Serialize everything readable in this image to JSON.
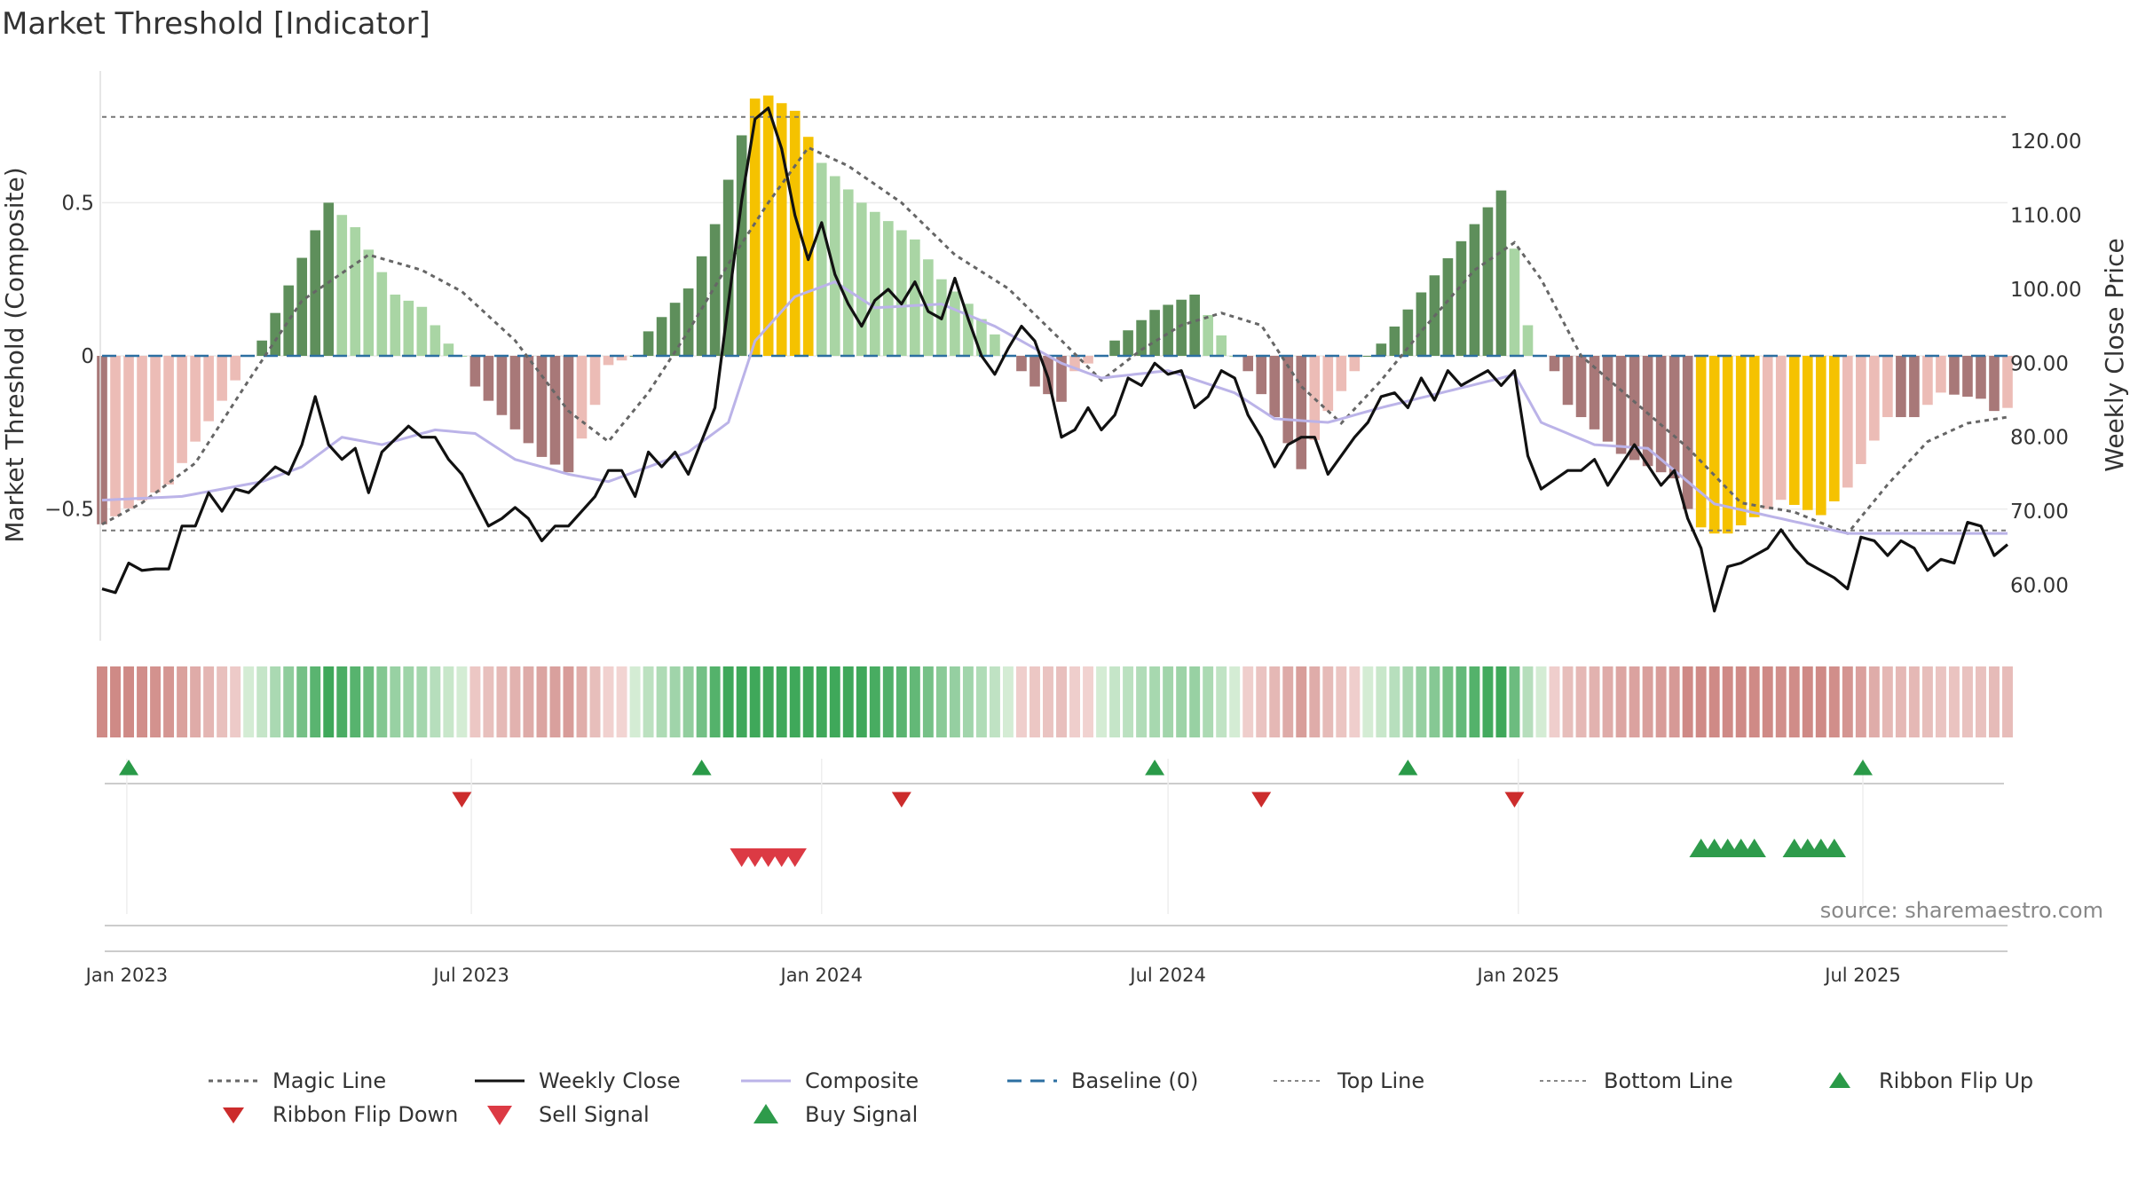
{
  "chart_data": {
    "type": "bar",
    "title": "Market Threshold [Indicator]",
    "ylabel": "Market Threshold (Composite)",
    "y2label": "Weekly Close Price",
    "ylim": [
      -0.93,
      0.93
    ],
    "y2lim": [
      52.5,
      129.5
    ],
    "yticks": [
      {
        "v": 0.5,
        "label": "0.5"
      },
      {
        "v": 0,
        "label": "0"
      },
      {
        "v": -0.5,
        "label": "−0.5"
      }
    ],
    "y2ticks": [
      {
        "v": 120,
        "label": "120.00"
      },
      {
        "v": 110,
        "label": "110.00"
      },
      {
        "v": 100,
        "label": "100.00"
      },
      {
        "v": 90,
        "label": "90.00"
      },
      {
        "v": 80,
        "label": "80.00"
      },
      {
        "v": 70,
        "label": "70.00"
      },
      {
        "v": 60,
        "label": "60.00"
      }
    ],
    "x_start": "2022-12-19",
    "x_end": "2025-09-15",
    "xticks": [
      {
        "date": "2023-01-01",
        "label": "Jan 2023"
      },
      {
        "date": "2023-07-01",
        "label": "Jul 2023"
      },
      {
        "date": "2024-01-01",
        "label": "Jan 2024"
      },
      {
        "date": "2024-07-01",
        "label": "Jul 2024"
      },
      {
        "date": "2025-01-01",
        "label": "Jan 2025"
      },
      {
        "date": "2025-07-01",
        "label": "Jul 2025"
      }
    ],
    "composite_anchors": [
      [
        "2022-12-19",
        -0.55
      ],
      [
        "2023-01-23",
        -0.42
      ],
      [
        "2023-02-06",
        -0.28
      ],
      [
        "2023-02-27",
        -0.08
      ],
      [
        "2023-03-06",
        0.0
      ],
      [
        "2023-03-13",
        0.05
      ],
      [
        "2023-04-03",
        0.32
      ],
      [
        "2023-04-17",
        0.5
      ],
      [
        "2023-05-01",
        0.42
      ],
      [
        "2023-05-22",
        0.2
      ],
      [
        "2023-06-05",
        0.16
      ],
      [
        "2023-06-19",
        0.04
      ],
      [
        "2023-06-26",
        0.0
      ],
      [
        "2023-07-03",
        -0.1
      ],
      [
        "2023-07-24",
        -0.24
      ],
      [
        "2023-08-07",
        -0.33
      ],
      [
        "2023-08-21",
        -0.38
      ],
      [
        "2023-09-04",
        -0.16
      ],
      [
        "2023-09-11",
        -0.03
      ],
      [
        "2023-09-25",
        0.0
      ],
      [
        "2023-10-02",
        0.08
      ],
      [
        "2023-10-23",
        0.22
      ],
      [
        "2023-11-06",
        0.43
      ],
      [
        "2023-11-20",
        0.72
      ],
      [
        "2023-11-27",
        0.84
      ],
      [
        "2023-12-04",
        0.85
      ],
      [
        "2023-12-18",
        0.8
      ],
      [
        "2024-01-01",
        0.63
      ],
      [
        "2024-01-22",
        0.5
      ],
      [
        "2024-02-19",
        0.38
      ],
      [
        "2024-03-04",
        0.25
      ],
      [
        "2024-03-18",
        0.17
      ],
      [
        "2024-04-01",
        0.07
      ],
      [
        "2024-04-08",
        0.0
      ],
      [
        "2024-04-22",
        -0.1
      ],
      [
        "2024-05-06",
        -0.15
      ],
      [
        "2024-05-13",
        -0.05
      ],
      [
        "2024-05-27",
        0.0
      ],
      [
        "2024-06-03",
        0.05
      ],
      [
        "2024-06-24",
        0.15
      ],
      [
        "2024-07-15",
        0.2
      ],
      [
        "2024-08-05",
        0.0
      ],
      [
        "2024-08-12",
        -0.05
      ],
      [
        "2024-08-26",
        -0.2
      ],
      [
        "2024-09-09",
        -0.37
      ],
      [
        "2024-09-23",
        -0.18
      ],
      [
        "2024-10-07",
        -0.05
      ],
      [
        "2024-10-14",
        0.0
      ],
      [
        "2024-10-21",
        0.04
      ],
      [
        "2024-12-09",
        0.43
      ],
      [
        "2024-12-23",
        0.54
      ],
      [
        "2024-12-30",
        0.35
      ],
      [
        "2025-01-06",
        0.1
      ],
      [
        "2025-01-13",
        0.0
      ],
      [
        "2025-01-20",
        -0.05
      ],
      [
        "2025-01-27",
        -0.16
      ],
      [
        "2025-02-24",
        -0.32
      ],
      [
        "2025-03-24",
        -0.4
      ],
      [
        "2025-03-31",
        -0.5
      ],
      [
        "2025-04-07",
        -0.56
      ],
      [
        "2025-04-14",
        -0.58
      ],
      [
        "2025-04-21",
        -0.58
      ],
      [
        "2025-05-12",
        -0.5
      ],
      [
        "2025-05-19",
        -0.47
      ],
      [
        "2025-06-09",
        -0.52
      ],
      [
        "2025-06-23",
        -0.43
      ],
      [
        "2025-07-14",
        -0.2
      ],
      [
        "2025-07-28",
        -0.2
      ],
      [
        "2025-08-11",
        -0.12
      ],
      [
        "2025-09-01",
        -0.14
      ],
      [
        "2025-09-08",
        -0.18
      ],
      [
        "2025-09-15",
        -0.17
      ]
    ],
    "weekly_close_anchors": [
      [
        "2022-12-19",
        59.5
      ],
      [
        "2022-12-26",
        59
      ],
      [
        "2023-01-02",
        63
      ],
      [
        "2023-01-09",
        62
      ],
      [
        "2023-01-16",
        62.2
      ],
      [
        "2023-01-23",
        62.2
      ],
      [
        "2023-01-30",
        68
      ],
      [
        "2023-02-06",
        68
      ],
      [
        "2023-02-13",
        72.5
      ],
      [
        "2023-02-20",
        70
      ],
      [
        "2023-02-27",
        73
      ],
      [
        "2023-03-06",
        72.5
      ],
      [
        "2023-03-20",
        76
      ],
      [
        "2023-03-27",
        75
      ],
      [
        "2023-04-03",
        79
      ],
      [
        "2023-04-10",
        85.5
      ],
      [
        "2023-04-17",
        79
      ],
      [
        "2023-04-24",
        77
      ],
      [
        "2023-05-01",
        78.5
      ],
      [
        "2023-05-08",
        72.5
      ],
      [
        "2023-05-15",
        78
      ],
      [
        "2023-05-29",
        81.5
      ],
      [
        "2023-06-05",
        80
      ],
      [
        "2023-06-12",
        80
      ],
      [
        "2023-06-19",
        77
      ],
      [
        "2023-06-26",
        75
      ],
      [
        "2023-07-03",
        71.5
      ],
      [
        "2023-07-10",
        68
      ],
      [
        "2023-07-17",
        69
      ],
      [
        "2023-07-24",
        70.5
      ],
      [
        "2023-07-31",
        69
      ],
      [
        "2023-08-07",
        66
      ],
      [
        "2023-08-14",
        68
      ],
      [
        "2023-08-21",
        68
      ],
      [
        "2023-09-04",
        72
      ],
      [
        "2023-09-11",
        75.5
      ],
      [
        "2023-09-18",
        75.5
      ],
      [
        "2023-09-25",
        72
      ],
      [
        "2023-10-02",
        78
      ],
      [
        "2023-10-09",
        76
      ],
      [
        "2023-10-16",
        78
      ],
      [
        "2023-10-23",
        75
      ],
      [
        "2023-10-30",
        79.5
      ],
      [
        "2023-11-06",
        84
      ],
      [
        "2023-11-20",
        112
      ],
      [
        "2023-11-27",
        123
      ],
      [
        "2023-12-04",
        124.5
      ],
      [
        "2023-12-11",
        119
      ],
      [
        "2023-12-18",
        110
      ],
      [
        "2023-12-25",
        104
      ],
      [
        "2024-01-01",
        109
      ],
      [
        "2024-01-08",
        102
      ],
      [
        "2024-01-15",
        98
      ],
      [
        "2024-01-22",
        95
      ],
      [
        "2024-01-29",
        98.5
      ],
      [
        "2024-02-05",
        100
      ],
      [
        "2024-02-12",
        98
      ],
      [
        "2024-02-19",
        101
      ],
      [
        "2024-02-26",
        97
      ],
      [
        "2024-03-04",
        96
      ],
      [
        "2024-03-11",
        101.5
      ],
      [
        "2024-03-18",
        96
      ],
      [
        "2024-03-25",
        91
      ],
      [
        "2024-04-01",
        88.5
      ],
      [
        "2024-04-08",
        92
      ],
      [
        "2024-04-15",
        95
      ],
      [
        "2024-04-22",
        93
      ],
      [
        "2024-04-29",
        88
      ],
      [
        "2024-05-06",
        80
      ],
      [
        "2024-05-13",
        81
      ],
      [
        "2024-05-20",
        84
      ],
      [
        "2024-05-27",
        81
      ],
      [
        "2024-06-03",
        83
      ],
      [
        "2024-06-10",
        88
      ],
      [
        "2024-06-17",
        87
      ],
      [
        "2024-06-24",
        90
      ],
      [
        "2024-07-01",
        88.5
      ],
      [
        "2024-07-08",
        89
      ],
      [
        "2024-07-15",
        84
      ],
      [
        "2024-07-22",
        85.5
      ],
      [
        "2024-07-29",
        89
      ],
      [
        "2024-08-05",
        88
      ],
      [
        "2024-08-12",
        83
      ],
      [
        "2024-08-19",
        80
      ],
      [
        "2024-08-26",
        76
      ],
      [
        "2024-09-02",
        79
      ],
      [
        "2024-09-09",
        80
      ],
      [
        "2024-09-16",
        80
      ],
      [
        "2024-09-23",
        75
      ],
      [
        "2024-10-07",
        80
      ],
      [
        "2024-10-14",
        82
      ],
      [
        "2024-10-21",
        85.5
      ],
      [
        "2024-10-28",
        86
      ],
      [
        "2024-11-04",
        84
      ],
      [
        "2024-11-11",
        88
      ],
      [
        "2024-11-18",
        85
      ],
      [
        "2024-11-25",
        89
      ],
      [
        "2024-12-02",
        87
      ],
      [
        "2024-12-09",
        88
      ],
      [
        "2024-12-16",
        89
      ],
      [
        "2024-12-23",
        87
      ],
      [
        "2024-12-30",
        89
      ],
      [
        "2025-01-06",
        77.5
      ],
      [
        "2025-01-13",
        73
      ],
      [
        "2025-01-27",
        75.5
      ],
      [
        "2025-02-03",
        75.5
      ],
      [
        "2025-02-10",
        77
      ],
      [
        "2025-02-17",
        73.5
      ],
      [
        "2025-03-03",
        79
      ],
      [
        "2025-03-17",
        73.5
      ],
      [
        "2025-03-24",
        75.5
      ],
      [
        "2025-03-31",
        69
      ],
      [
        "2025-04-07",
        65
      ],
      [
        "2025-04-14",
        56.5
      ],
      [
        "2025-04-21",
        62.5
      ],
      [
        "2025-04-28",
        63
      ],
      [
        "2025-05-05",
        64
      ],
      [
        "2025-05-12",
        65
      ],
      [
        "2025-05-19",
        67.5
      ],
      [
        "2025-05-26",
        65
      ],
      [
        "2025-06-02",
        63
      ],
      [
        "2025-06-16",
        61
      ],
      [
        "2025-06-23",
        59.5
      ],
      [
        "2025-06-30",
        66.5
      ],
      [
        "2025-07-07",
        66
      ],
      [
        "2025-07-14",
        64
      ],
      [
        "2025-07-21",
        66
      ],
      [
        "2025-07-28",
        65
      ],
      [
        "2025-08-04",
        62
      ],
      [
        "2025-08-11",
        63.5
      ],
      [
        "2025-08-18",
        63
      ],
      [
        "2025-08-25",
        68.5
      ],
      [
        "2025-09-01",
        68
      ],
      [
        "2025-09-08",
        64
      ],
      [
        "2025-09-15",
        65.5
      ]
    ],
    "composite_line_anchors": [
      [
        "2022-12-19",
        71.5
      ],
      [
        "2023-01-30",
        72
      ],
      [
        "2023-03-13",
        74
      ],
      [
        "2023-04-03",
        76
      ],
      [
        "2023-04-24",
        80
      ],
      [
        "2023-05-15",
        79
      ],
      [
        "2023-06-12",
        81
      ],
      [
        "2023-07-03",
        80.5
      ],
      [
        "2023-07-24",
        77
      ],
      [
        "2023-08-21",
        75
      ],
      [
        "2023-09-11",
        74
      ],
      [
        "2023-10-02",
        76
      ],
      [
        "2023-10-23",
        78
      ],
      [
        "2023-11-13",
        82
      ],
      [
        "2023-11-27",
        93
      ],
      [
        "2023-12-18",
        99
      ],
      [
        "2024-01-08",
        101
      ],
      [
        "2024-01-29",
        97.5
      ],
      [
        "2024-03-04",
        98
      ],
      [
        "2024-04-01",
        95
      ],
      [
        "2024-05-06",
        90
      ],
      [
        "2024-05-27",
        88
      ],
      [
        "2024-07-01",
        89
      ],
      [
        "2024-08-05",
        86
      ],
      [
        "2024-08-26",
        82.5
      ],
      [
        "2024-09-23",
        82
      ],
      [
        "2024-10-21",
        84
      ],
      [
        "2024-12-23",
        88
      ],
      [
        "2024-12-30",
        88.5
      ],
      [
        "2025-01-13",
        82
      ],
      [
        "2025-02-10",
        79
      ],
      [
        "2025-03-10",
        78.5
      ],
      [
        "2025-04-14",
        71
      ],
      [
        "2025-05-19",
        69
      ],
      [
        "2025-06-23",
        67
      ],
      [
        "2025-09-15",
        67
      ]
    ],
    "magic_line_anchors": [
      [
        "2022-12-19",
        -0.55
      ],
      [
        "2023-01-09",
        -0.48
      ],
      [
        "2023-02-06",
        -0.35
      ],
      [
        "2023-03-06",
        -0.08
      ],
      [
        "2023-04-03",
        0.18
      ],
      [
        "2023-05-08",
        0.33
      ],
      [
        "2023-06-05",
        0.28
      ],
      [
        "2023-06-26",
        0.21
      ],
      [
        "2023-07-24",
        0.05
      ],
      [
        "2023-08-21",
        -0.18
      ],
      [
        "2023-09-11",
        -0.28
      ],
      [
        "2023-10-02",
        -0.12
      ],
      [
        "2023-10-23",
        0.08
      ],
      [
        "2023-11-13",
        0.3
      ],
      [
        "2023-12-04",
        0.5
      ],
      [
        "2023-12-25",
        0.68
      ],
      [
        "2024-01-15",
        0.62
      ],
      [
        "2024-02-12",
        0.5
      ],
      [
        "2024-03-11",
        0.33
      ],
      [
        "2024-04-08",
        0.22
      ],
      [
        "2024-05-06",
        0.05
      ],
      [
        "2024-05-27",
        -0.08
      ],
      [
        "2024-06-17",
        0.02
      ],
      [
        "2024-07-08",
        0.1
      ],
      [
        "2024-07-29",
        0.14
      ],
      [
        "2024-08-19",
        0.1
      ],
      [
        "2024-09-09",
        -0.1
      ],
      [
        "2024-09-30",
        -0.22
      ],
      [
        "2024-10-21",
        -0.08
      ],
      [
        "2024-11-11",
        0.08
      ],
      [
        "2024-12-09",
        0.28
      ],
      [
        "2024-12-30",
        0.37
      ],
      [
        "2025-01-13",
        0.25
      ],
      [
        "2025-02-03",
        0.0
      ],
      [
        "2025-03-03",
        -0.15
      ],
      [
        "2025-03-31",
        -0.3
      ],
      [
        "2025-04-28",
        -0.48
      ],
      [
        "2025-05-26",
        -0.51
      ],
      [
        "2025-06-23",
        -0.58
      ],
      [
        "2025-07-14",
        -0.42
      ],
      [
        "2025-08-04",
        -0.28
      ],
      [
        "2025-08-25",
        -0.22
      ],
      [
        "2025-09-15",
        -0.2
      ]
    ],
    "top_line": 0.78,
    "bottom_line": -0.57,
    "baseline": 0,
    "yellow_bars": [
      [
        "2023-11-27",
        "2023-12-25"
      ],
      [
        "2025-04-07",
        "2025-05-05"
      ],
      [
        "2025-05-26",
        "2025-06-16"
      ]
    ],
    "ribbon_flip_up": [
      "2023-01-02",
      "2023-10-30",
      "2024-06-24",
      "2024-11-04",
      "2025-07-01"
    ],
    "ribbon_flip_down": [
      "2023-06-26",
      "2024-02-12",
      "2024-08-19",
      "2024-12-30"
    ],
    "sell_signals": [
      "2023-11-20",
      "2023-11-27",
      "2023-12-04",
      "2023-12-11",
      "2023-12-18"
    ],
    "buy_signals": [
      "2025-04-07",
      "2025-04-14",
      "2025-04-21",
      "2025-04-28",
      "2025-05-05",
      "2025-05-26",
      "2025-06-02",
      "2025-06-09",
      "2025-06-16"
    ],
    "series": [
      {
        "name": "Magic Line"
      },
      {
        "name": "Weekly Close"
      },
      {
        "name": "Composite"
      },
      {
        "name": "Baseline (0)"
      },
      {
        "name": "Top Line"
      },
      {
        "name": "Bottom Line"
      },
      {
        "name": "Ribbon Flip Up"
      },
      {
        "name": "Ribbon Flip Down"
      },
      {
        "name": "Sell Signal"
      },
      {
        "name": "Buy Signal"
      }
    ],
    "source": "source: sharemaestro.com",
    "colors": {
      "pos_dark": "#5e8f5b",
      "pos_light": "#a9d5a4",
      "neg_dark": "#a87878",
      "neg_light": "#ecbcb6",
      "yellow": "#f5c200",
      "close": "#111111",
      "composite": "#bbb3e8",
      "magic": "#666666",
      "baseline": "#2c6fa1",
      "flip_up": "#2a9a48",
      "flip_down": "#cc2c2c",
      "sell": "#dc3a44",
      "buy": "#2e9b4b"
    }
  }
}
